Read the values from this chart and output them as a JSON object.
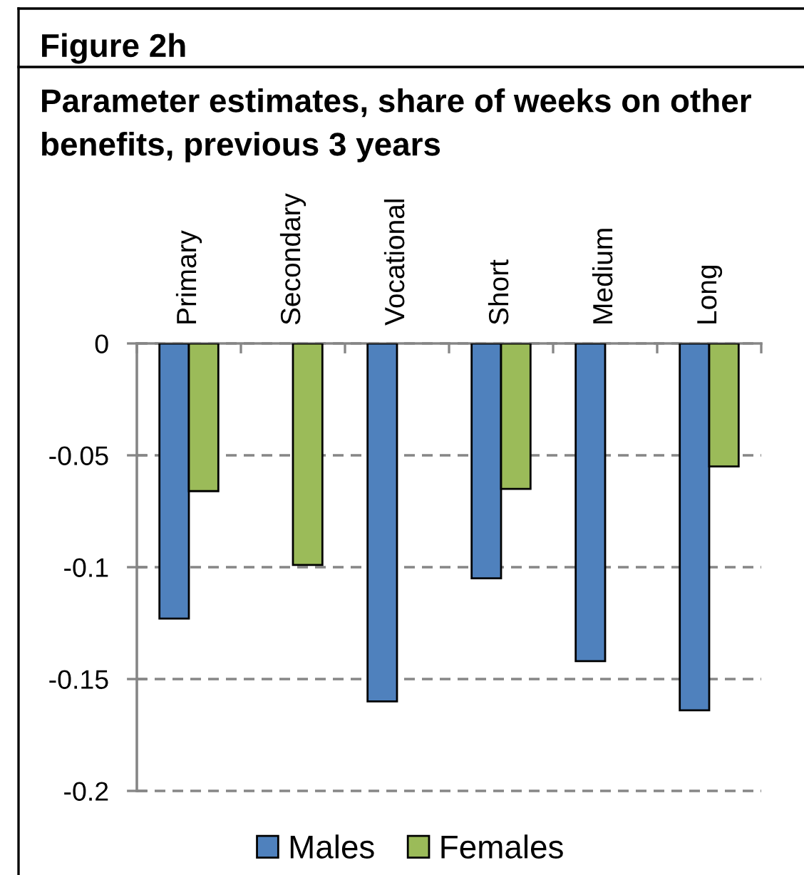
{
  "chart_data": {
    "type": "bar",
    "title": "Figure 2h",
    "subtitle": "Parameter estimates, share of weeks on other benefits, previous 3 years",
    "categories": [
      "Primary",
      "Secondary",
      "Vocational",
      "Short",
      "Medium",
      "Long"
    ],
    "series": [
      {
        "name": "Males",
        "color": "#4f81bd",
        "values": [
          -0.123,
          null,
          -0.16,
          -0.105,
          -0.142,
          -0.164
        ]
      },
      {
        "name": "Females",
        "color": "#9bbb59",
        "values": [
          -0.066,
          -0.099,
          null,
          -0.065,
          null,
          -0.055
        ]
      }
    ],
    "ylim": [
      -0.2,
      0
    ],
    "yticks": [
      -0.2,
      -0.15,
      -0.1,
      -0.05,
      0
    ],
    "grid": "y",
    "legend": "bottom"
  }
}
